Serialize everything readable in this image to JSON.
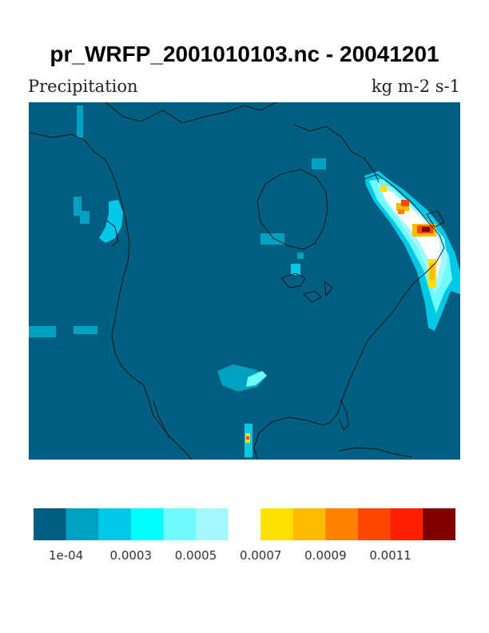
{
  "title": "pr_WRFP_2001010103.nc - 20041201",
  "variable": "Precipitation",
  "units": "kg m-2 s-1",
  "background_color": "#005f80",
  "colorbar": {
    "colors": [
      "#005f80",
      "#00a0c0",
      "#00c8e6",
      "#00ffff",
      "#6efaff",
      "#a4f6ff",
      "#ffffff",
      "#ffe000",
      "#ffbc00",
      "#ff8200",
      "#ff4600",
      "#ff2000",
      "#800000"
    ],
    "tick_labels": [
      "1e-04",
      "0.0003",
      "0.0005",
      "0.0007",
      "0.0009",
      "0.0011"
    ]
  }
}
